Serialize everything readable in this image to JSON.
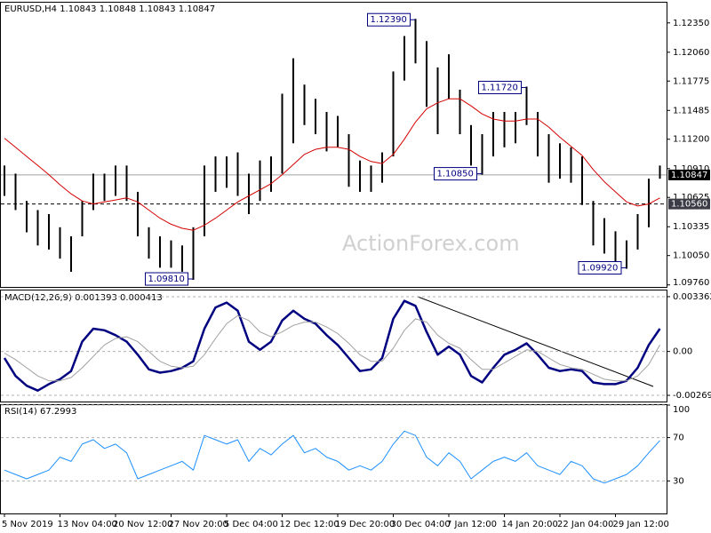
{
  "chart_data": [
    {
      "type": "ohlc",
      "title": "EURUSD,H4  1.10843 1.10848 1.10843 1.10847",
      "watermark": "ActionForex.com",
      "color": "#000000",
      "categories": [
        "5 Nov 2019",
        null,
        null,
        null,
        null,
        "13 Nov 04:00",
        null,
        null,
        null,
        null,
        "20 Nov 12:00",
        null,
        null,
        null,
        null,
        "27 Nov 20:00",
        null,
        null,
        null,
        null,
        "5 Dec 04:00",
        null,
        null,
        null,
        null,
        "12 Dec 12:00",
        null,
        null,
        null,
        null,
        "19 Dec 20:00",
        null,
        null,
        null,
        null,
        "30 Dec 04:00",
        null,
        null,
        null,
        null,
        "7 Jan 12:00",
        null,
        null,
        null,
        null,
        "14 Jan 20:00",
        null,
        null,
        null,
        null,
        "22 Jan 04:00",
        null,
        null,
        null,
        null,
        "29 Jan 12:00",
        null,
        null,
        null,
        null
      ],
      "high": [
        1.1094,
        1.1086,
        1.1059,
        1.105,
        1.1046,
        1.1033,
        1.1024,
        1.1059,
        1.1086,
        1.1086,
        1.1094,
        1.1094,
        1.1068,
        1.1033,
        1.1024,
        1.102,
        1.1015,
        1.1033,
        1.1094,
        1.1103,
        1.1103,
        1.1107,
        1.1086,
        1.1099,
        1.1103,
        1.1165,
        1.12,
        1.1174,
        1.116,
        1.1147,
        1.1143,
        1.1125,
        1.1099,
        1.1094,
        1.1107,
        1.1187,
        1.1222,
        1.1239,
        1.1217,
        1.1191,
        1.1204,
        1.1169,
        1.1134,
        1.1125,
        1.1147,
        1.1147,
        1.1147,
        1.1172,
        1.1147,
        1.1125,
        1.1116,
        1.1112,
        1.1103,
        1.1059,
        1.1042,
        1.1029,
        1.102,
        1.1046,
        1.1081,
        1.1094
      ],
      "low": [
        1.1064,
        1.105,
        1.1028,
        1.1015,
        1.1011,
        1.1002,
        1.0989,
        1.1024,
        1.105,
        1.1059,
        1.1064,
        1.1059,
        1.1024,
        1.1002,
        1.0993,
        1.0993,
        1.0989,
        1.0981,
        1.1024,
        1.1068,
        1.1072,
        1.1064,
        1.1046,
        1.1059,
        1.1068,
        1.1086,
        1.1116,
        1.1134,
        1.1125,
        1.1108,
        1.1112,
        1.1073,
        1.1068,
        1.1068,
        1.1077,
        1.1103,
        1.1178,
        1.1195,
        1.1152,
        1.1125,
        1.116,
        1.1125,
        1.1094,
        1.1085,
        1.1103,
        1.1112,
        1.1116,
        1.1134,
        1.1103,
        1.1077,
        1.1081,
        1.1077,
        1.1055,
        1.1015,
        1.1007,
        1.0998,
        1.0992,
        1.1011,
        1.1033,
        1.1081
      ],
      "series": [
        {
          "color": "#d40000",
          "line_width": 1,
          "values": [
            1.1121,
            1.1112,
            1.1103,
            1.1094,
            1.1085,
            1.1075,
            1.1066,
            1.1059,
            1.1056,
            1.1058,
            1.106,
            1.1062,
            1.1058,
            1.105,
            1.1042,
            1.1036,
            1.1032,
            1.103,
            1.1035,
            1.1042,
            1.105,
            1.1058,
            1.1064,
            1.107,
            1.1076,
            1.1085,
            1.1095,
            1.1105,
            1.111,
            1.1112,
            1.1112,
            1.111,
            1.1103,
            1.1098,
            1.1096,
            1.1105,
            1.112,
            1.1137,
            1.115,
            1.1156,
            1.116,
            1.116,
            1.1153,
            1.1145,
            1.114,
            1.1138,
            1.1138,
            1.114,
            1.114,
            1.1132,
            1.1122,
            1.1113,
            1.1104,
            1.109,
            1.1078,
            1.1068,
            1.1058,
            1.1054,
            1.1056,
            1.1062
          ]
        }
      ],
      "annotations": [
        {
          "value": 1.1239,
          "label": "1.12390"
        },
        {
          "value": 1.1172,
          "label": "1.11720"
        },
        {
          "value": 1.1085,
          "label": "1.10850"
        },
        {
          "value": 1.0981,
          "label": "1.09810"
        },
        {
          "value": 1.0992,
          "label": "1.09920"
        }
      ],
      "price_lines": [
        {
          "value": 1.10847,
          "label": "1.10847",
          "style": "solid",
          "color": "#000000"
        },
        {
          "value": 1.1056,
          "label": "1.10560",
          "style": "dashed",
          "color": "#3c3c46"
        }
      ],
      "ylim": [
        1.0974,
        1.1255
      ],
      "yticks": [
        {
          "value": 1.1235,
          "label": "1.12350"
        },
        {
          "value": 1.1206,
          "label": "1.12060"
        },
        {
          "value": 1.11775,
          "label": "1.11775"
        },
        {
          "value": 1.11485,
          "label": "1.11485"
        },
        {
          "value": 1.112,
          "label": "1.11200"
        },
        {
          "value": 1.1091,
          "label": "1.10910"
        },
        {
          "value": 1.10625,
          "label": "1.10625"
        },
        {
          "value": 1.10335,
          "label": "1.10335"
        },
        {
          "value": 1.1005,
          "label": "1.10050"
        },
        {
          "value": 1.0976,
          "label": "1.09760"
        }
      ],
      "grid": false
    },
    {
      "type": "line",
      "title": "MACD(12,26,9) 0.001393 0.000413",
      "series": [
        {
          "color": "#000080",
          "line_width": 2.5,
          "values": [
            -0.0004,
            -0.0015,
            -0.0021,
            -0.0024,
            -0.002,
            -0.0017,
            -0.0012,
            0.0006,
            0.0014,
            0.0013,
            0.001,
            0.0006,
            -0.0002,
            -0.0011,
            -0.0013,
            -0.0012,
            -0.001,
            -0.0006,
            0.0014,
            0.0027,
            0.003,
            0.0025,
            0.0006,
            0.0001,
            0.0006,
            0.0019,
            0.0025,
            0.002,
            0.0017,
            0.001,
            0.0004,
            -0.0004,
            -0.0012,
            -0.0011,
            -0.0004,
            0.002,
            0.0031,
            0.0028,
            0.0012,
            -0.0002,
            0.0003,
            -0.0002,
            -0.0015,
            -0.0019,
            -0.001,
            -0.0002,
            0.0001,
            0.0005,
            -0.0002,
            -0.001,
            -0.0012,
            -0.0011,
            -0.0012,
            -0.0019,
            -0.002,
            -0.002,
            -0.0018,
            -0.001,
            0.0004,
            0.0014
          ]
        },
        {
          "color": "#a0a0a0",
          "line_width": 1,
          "values": [
            -0.0001,
            -0.0005,
            -0.001,
            -0.0015,
            -0.0018,
            -0.0018,
            -0.0016,
            -0.001,
            -0.0003,
            0.0004,
            0.0008,
            0.0009,
            0.0006,
            0.0,
            -0.0006,
            -0.0009,
            -0.001,
            -0.0009,
            -0.0002,
            0.0008,
            0.0017,
            0.0022,
            0.0019,
            0.0012,
            0.0009,
            0.0012,
            0.0016,
            0.0018,
            0.0018,
            0.0015,
            0.0011,
            0.0005,
            -0.0002,
            -0.0006,
            -0.0006,
            0.0002,
            0.0013,
            0.002,
            0.0018,
            0.001,
            0.0005,
            0.0002,
            -0.0005,
            -0.0011,
            -0.0011,
            -0.0007,
            -0.0003,
            0.0001,
            0.0,
            -0.0004,
            -0.0008,
            -0.001,
            -0.0011,
            -0.0014,
            -0.0017,
            -0.0018,
            -0.0018,
            -0.0015,
            -0.0008,
            0.0004
          ]
        }
      ],
      "ylim": [
        -0.00307,
        0.00374
      ],
      "yticks": [
        0.003362,
        {
          "value": 0,
          "label": "0.00"
        },
        -0.002691
      ],
      "grid": true
    },
    {
      "type": "line",
      "title": "RSI(14) 67.2993",
      "series": [
        {
          "color": "#1e90ff",
          "line_width": 1,
          "values": [
            40,
            36,
            32,
            36,
            40,
            52,
            48,
            64,
            68,
            60,
            64,
            56,
            32,
            36,
            40,
            44,
            48,
            40,
            72,
            68,
            64,
            68,
            48,
            60,
            54,
            64,
            72,
            56,
            60,
            52,
            48,
            40,
            44,
            40,
            48,
            64,
            76,
            72,
            52,
            44,
            56,
            48,
            32,
            40,
            48,
            52,
            48,
            56,
            44,
            40,
            36,
            48,
            44,
            32,
            28,
            32,
            36,
            44,
            56,
            67.3
          ]
        }
      ],
      "ylim": [
        0,
        100
      ],
      "yticks": [
        100,
        70,
        30
      ],
      "grid": true
    }
  ]
}
